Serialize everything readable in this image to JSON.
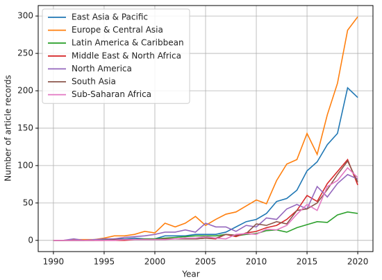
{
  "chart_data": {
    "type": "line",
    "xlabel": "Year",
    "ylabel": "Number of article records",
    "x": [
      1990,
      1991,
      1992,
      1993,
      1994,
      1995,
      1996,
      1997,
      1998,
      1999,
      2000,
      2001,
      2002,
      2003,
      2004,
      2005,
      2006,
      2007,
      2008,
      2009,
      2010,
      2011,
      2012,
      2013,
      2014,
      2015,
      2016,
      2017,
      2018,
      2019,
      2020
    ],
    "series": [
      {
        "name": "East Asia & Pacific",
        "color": "#1f77b4",
        "values": [
          0,
          0,
          0,
          0,
          1,
          1,
          2,
          2,
          3,
          2,
          2,
          6,
          6,
          6,
          8,
          8,
          8,
          11,
          18,
          25,
          28,
          36,
          52,
          56,
          67,
          93,
          105,
          128,
          143,
          204,
          191
        ]
      },
      {
        "name": "Europe & Central Asia",
        "color": "#ff7f0e",
        "values": [
          0,
          0,
          1,
          1,
          1,
          3,
          6,
          6,
          8,
          12,
          10,
          23,
          18,
          23,
          32,
          20,
          28,
          35,
          38,
          46,
          54,
          49,
          80,
          102,
          108,
          143,
          115,
          168,
          210,
          281,
          299
        ]
      },
      {
        "name": "Latin America & Caribbean",
        "color": "#2ca02c",
        "values": [
          0,
          0,
          0,
          0,
          0,
          1,
          1,
          1,
          1,
          2,
          2,
          3,
          4,
          5,
          6,
          6,
          6,
          8,
          6,
          8,
          9,
          13,
          14,
          11,
          17,
          21,
          25,
          24,
          34,
          38,
          36
        ]
      },
      {
        "name": "Middle East & North Africa",
        "color": "#d62728",
        "values": [
          0,
          0,
          0,
          0,
          0,
          0,
          0,
          0,
          1,
          1,
          1,
          2,
          2,
          3,
          2,
          3,
          2,
          8,
          5,
          10,
          12,
          17,
          20,
          28,
          40,
          60,
          52,
          76,
          92,
          108,
          74
        ]
      },
      {
        "name": "North America",
        "color": "#9467bd",
        "values": [
          0,
          0,
          2,
          0,
          1,
          2,
          2,
          4,
          5,
          6,
          8,
          11,
          11,
          14,
          11,
          23,
          18,
          18,
          12,
          20,
          18,
          30,
          28,
          42,
          48,
          42,
          72,
          58,
          76,
          88,
          82
        ]
      },
      {
        "name": "South Asia",
        "color": "#8c564b",
        "values": [
          0,
          0,
          0,
          0,
          0,
          0,
          1,
          1,
          1,
          1,
          1,
          2,
          2,
          2,
          2,
          3,
          3,
          8,
          7,
          9,
          22,
          20,
          25,
          22,
          40,
          42,
          50,
          68,
          88,
          106,
          78
        ]
      },
      {
        "name": "Sub-Saharan Africa",
        "color": "#e377c2",
        "values": [
          0,
          0,
          0,
          0,
          0,
          0,
          0,
          1,
          1,
          1,
          1,
          1,
          2,
          3,
          3,
          5,
          3,
          2,
          8,
          9,
          8,
          15,
          14,
          20,
          35,
          48,
          40,
          72,
          80,
          97,
          84
        ]
      }
    ],
    "xlim": [
      1988.5,
      2021.5
    ],
    "ylim": [
      -15,
      314
    ],
    "xticks": [
      1990,
      1995,
      2000,
      2005,
      2010,
      2015,
      2020
    ],
    "yticks": [
      0,
      50,
      100,
      150,
      200,
      250,
      300
    ],
    "grid": true,
    "legend": "upper left"
  }
}
